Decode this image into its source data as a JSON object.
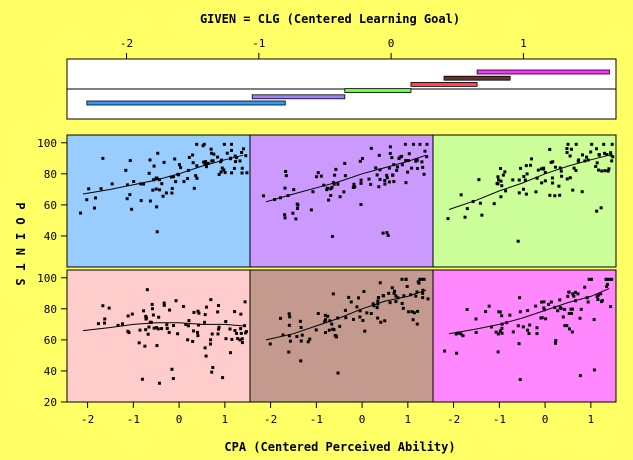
{
  "chart_data": {
    "type": "scatter",
    "title": "GIVEN = CLG (Centered Learning Goal)",
    "xlabel": "CPA (Centered Perceived Ability)",
    "ylabel": "POINTS",
    "given_axis": {
      "ticks": [
        "-2",
        "-1",
        "0",
        "1"
      ],
      "range": [
        -2.45,
        1.7
      ]
    },
    "given_intervals": [
      {
        "lo": -2.3,
        "hi": -0.8,
        "color": "#3399FF"
      },
      {
        "lo": -1.05,
        "hi": -0.35,
        "color": "#A080FF"
      },
      {
        "lo": -0.35,
        "hi": 0.15,
        "color": "#66FF44"
      },
      {
        "lo": 0.15,
        "hi": 0.65,
        "color": "#FF4455"
      },
      {
        "lo": 0.4,
        "hi": 0.9,
        "color": "#663333"
      },
      {
        "lo": 0.65,
        "hi": 1.65,
        "color": "#FF33FF"
      }
    ],
    "x_ticks": [
      "-2",
      "-1",
      "0",
      "1"
    ],
    "xlim": [
      -2.45,
      1.55
    ],
    "y_ticks": [
      "20",
      "40",
      "60",
      "80",
      "100"
    ],
    "ylim": [
      20,
      105
    ],
    "panels": [
      {
        "bg": "#99CCFF",
        "row": 1,
        "col": 0,
        "loess": [
          [
            -2.1,
            67
          ],
          [
            -1.5,
            70
          ],
          [
            -1,
            73
          ],
          [
            -0.5,
            76
          ],
          [
            0,
            80
          ],
          [
            0.5,
            85
          ],
          [
            1,
            89
          ],
          [
            1.4,
            92
          ]
        ],
        "seed": 11
      },
      {
        "bg": "#CC99FF",
        "row": 1,
        "col": 1,
        "loess": [
          [
            -2.1,
            62
          ],
          [
            -1.5,
            67
          ],
          [
            -1,
            71
          ],
          [
            -0.5,
            75
          ],
          [
            0,
            80
          ],
          [
            0.5,
            84
          ],
          [
            1,
            88
          ],
          [
            1.4,
            92
          ]
        ],
        "seed": 23
      },
      {
        "bg": "#CCFF99",
        "row": 1,
        "col": 2,
        "loess": [
          [
            -2.1,
            57
          ],
          [
            -1.5,
            63
          ],
          [
            -1,
            69
          ],
          [
            -0.5,
            74
          ],
          [
            0,
            80
          ],
          [
            0.5,
            85
          ],
          [
            1,
            89
          ],
          [
            1.4,
            92
          ]
        ],
        "seed": 37
      },
      {
        "bg": "#FFCCCC",
        "row": 0,
        "col": 0,
        "loess": [
          [
            -2.1,
            66
          ],
          [
            -1.5,
            68
          ],
          [
            -1,
            70
          ],
          [
            -0.5,
            71
          ],
          [
            0,
            71
          ],
          [
            0.5,
            70
          ],
          [
            1,
            70
          ],
          [
            1.4,
            69
          ]
        ],
        "seed": 41
      },
      {
        "bg": "#C49A8E",
        "row": 0,
        "col": 1,
        "loess": [
          [
            -2.1,
            60
          ],
          [
            -1.5,
            64
          ],
          [
            -1,
            69
          ],
          [
            -0.5,
            74
          ],
          [
            0,
            80
          ],
          [
            0.5,
            85
          ],
          [
            1,
            88
          ],
          [
            1.4,
            92
          ]
        ],
        "seed": 53
      },
      {
        "bg": "#FF88FF",
        "row": 0,
        "col": 2,
        "loess": [
          [
            -2.1,
            64
          ],
          [
            -1.5,
            67
          ],
          [
            -1,
            70
          ],
          [
            -0.5,
            74
          ],
          [
            0,
            79
          ],
          [
            0.5,
            84
          ],
          [
            1,
            88
          ],
          [
            1.4,
            93
          ]
        ],
        "seed": 67
      }
    ]
  }
}
